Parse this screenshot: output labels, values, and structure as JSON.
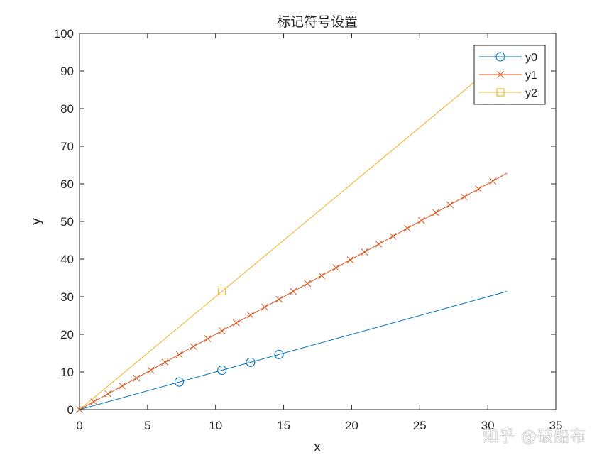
{
  "chart_data": {
    "type": "line",
    "title": "标记符号设置",
    "xlabel": "x",
    "ylabel": "y",
    "xlim": [
      0,
      35
    ],
    "ylim": [
      0,
      100
    ],
    "xticks": [
      0,
      5,
      10,
      15,
      20,
      25,
      30,
      35
    ],
    "yticks": [
      0,
      10,
      20,
      30,
      40,
      50,
      60,
      70,
      80,
      90,
      100
    ],
    "grid": false,
    "legend_position": "northeast",
    "x_range": [
      0,
      31.416
    ],
    "series": [
      {
        "name": "y0",
        "formula": "y = x",
        "slope": 1,
        "color": "#0072BD",
        "marker": "o",
        "marker_x": [
          7.33,
          10.47,
          12.57,
          14.66
        ]
      },
      {
        "name": "y1",
        "formula": "y = 2x",
        "slope": 2,
        "color": "#D95319",
        "marker": "x",
        "marker_x": [
          0,
          1.047,
          2.094,
          3.142,
          4.189,
          5.236,
          6.283,
          7.33,
          8.378,
          9.425,
          10.472,
          11.519,
          12.566,
          13.614,
          14.661,
          15.708,
          16.755,
          17.802,
          18.85,
          19.897,
          20.944,
          21.991,
          23.038,
          24.086,
          25.133,
          26.18,
          27.227,
          28.274,
          29.322,
          30.369
        ]
      },
      {
        "name": "y2",
        "formula": "y = 3x",
        "slope": 3,
        "color": "#EDB120",
        "marker": "s",
        "marker_x": [
          10.47
        ]
      }
    ]
  },
  "legend": {
    "entries": [
      "y0",
      "y1",
      "y2"
    ]
  },
  "watermark": "知乎 @破船布"
}
